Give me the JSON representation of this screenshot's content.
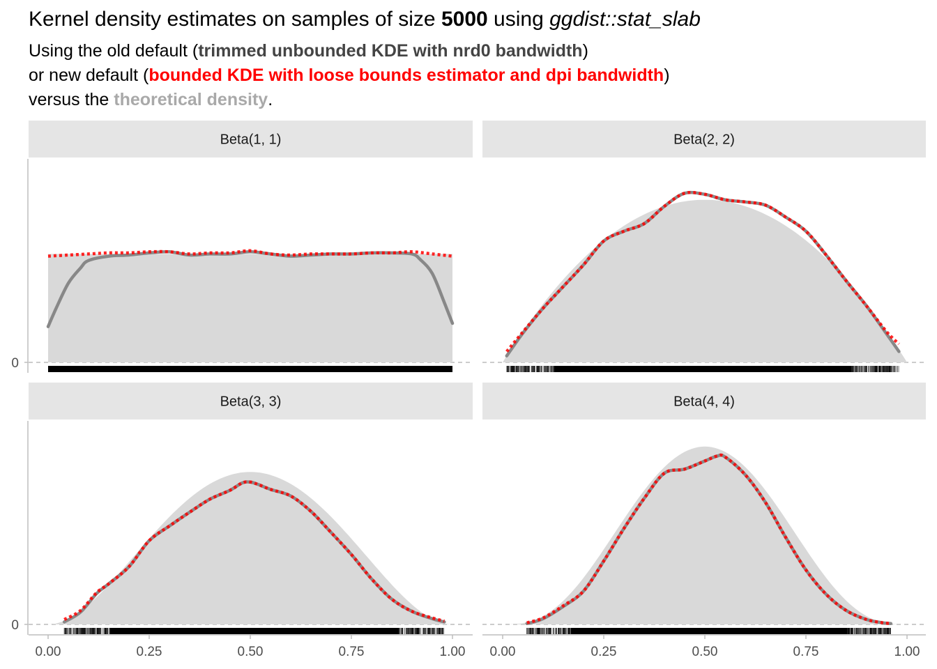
{
  "title": {
    "prefix": "Kernel density estimates on samples of size ",
    "size": "5000",
    "mid": " using ",
    "fn": "ggdist::stat_slab"
  },
  "subtitle": {
    "line1_pre": "Using the old default (",
    "line1_bold": "trimmed unbounded KDE with nrd0 bandwidth",
    "line1_post": ")",
    "line2_pre": "or new default (",
    "line2_bold": "bounded KDE with loose bounds estimator and dpi bandwidth",
    "line2_post": ")",
    "line3_pre": "versus the ",
    "line3_bold": "theoretical density",
    "line3_post": "."
  },
  "colors": {
    "old_default": "#888888",
    "new_default": "#ff0000",
    "theoretical": "#d9d9d9",
    "strip_bg": "#e5e5e5",
    "rug": "#000000"
  },
  "chart_data": {
    "type": "area",
    "xlim": [
      0,
      1
    ],
    "x_ticks": [
      0,
      0.25,
      0.5,
      0.75,
      1
    ],
    "x_tick_labels": [
      "0.00",
      "0.25",
      "0.50",
      "0.75",
      "1.00"
    ],
    "y_tick_labels": [
      "0"
    ],
    "xlabel": "",
    "ylabel": "",
    "sample_size": 5000,
    "legend": "none",
    "panels": [
      {
        "label": "Beta(1, 1)",
        "a": 1,
        "b": 1,
        "ymax": 1.8,
        "sample_range": [
          0.0,
          1.0
        ],
        "new_kde": {
          "x": [
            0.0,
            0.05,
            0.1,
            0.15,
            0.2,
            0.25,
            0.3,
            0.35,
            0.4,
            0.45,
            0.5,
            0.55,
            0.6,
            0.65,
            0.7,
            0.75,
            0.8,
            0.85,
            0.9,
            0.95,
            1.0
          ],
          "y": [
            0.98,
            0.99,
            1.0,
            1.01,
            1.01,
            1.02,
            1.02,
            1.0,
            1.01,
            1.01,
            1.03,
            1.0,
            0.99,
            1.0,
            1.0,
            1.0,
            1.01,
            1.01,
            1.02,
            1.0,
            0.98
          ]
        },
        "old_kde": {
          "x": [
            0.0,
            0.02,
            0.05,
            0.08,
            0.1,
            0.15,
            0.2,
            0.25,
            0.3,
            0.35,
            0.4,
            0.45,
            0.5,
            0.55,
            0.6,
            0.65,
            0.7,
            0.75,
            0.8,
            0.85,
            0.9,
            0.92,
            0.95,
            0.98,
            1.0
          ],
          "y": [
            0.33,
            0.5,
            0.73,
            0.87,
            0.94,
            0.98,
            0.99,
            1.01,
            1.02,
            0.99,
            1.0,
            1.0,
            1.02,
            1.0,
            0.98,
            0.99,
            1.0,
            1.0,
            1.01,
            1.01,
            1.0,
            0.95,
            0.82,
            0.55,
            0.36
          ]
        }
      },
      {
        "label": "Beta(2, 2)",
        "a": 2,
        "b": 2,
        "ymax": 1.8,
        "sample_range": [
          0.01,
          0.98
        ],
        "new_kde": {
          "x": [
            0.01,
            0.05,
            0.1,
            0.15,
            0.2,
            0.25,
            0.3,
            0.35,
            0.4,
            0.45,
            0.5,
            0.55,
            0.6,
            0.65,
            0.7,
            0.75,
            0.8,
            0.85,
            0.9,
            0.95,
            0.98
          ],
          "y": [
            0.1,
            0.28,
            0.5,
            0.7,
            0.9,
            1.12,
            1.21,
            1.28,
            1.44,
            1.56,
            1.55,
            1.5,
            1.48,
            1.45,
            1.34,
            1.21,
            0.99,
            0.75,
            0.52,
            0.28,
            0.17
          ]
        },
        "old_kde": {
          "x": [
            0.01,
            0.05,
            0.1,
            0.15,
            0.2,
            0.25,
            0.3,
            0.35,
            0.4,
            0.45,
            0.5,
            0.55,
            0.6,
            0.65,
            0.7,
            0.75,
            0.8,
            0.85,
            0.9,
            0.95,
            0.98
          ],
          "y": [
            0.06,
            0.27,
            0.5,
            0.7,
            0.9,
            1.12,
            1.21,
            1.28,
            1.44,
            1.56,
            1.55,
            1.5,
            1.48,
            1.45,
            1.34,
            1.21,
            0.99,
            0.75,
            0.52,
            0.26,
            0.1
          ]
        }
      },
      {
        "label": "Beta(3, 3)",
        "a": 3,
        "b": 3,
        "ymax": 2.4,
        "sample_range": [
          0.04,
          0.98
        ],
        "new_kde": {
          "x": [
            0.04,
            0.08,
            0.12,
            0.15,
            0.2,
            0.25,
            0.3,
            0.35,
            0.4,
            0.45,
            0.48,
            0.5,
            0.52,
            0.55,
            0.6,
            0.65,
            0.7,
            0.75,
            0.8,
            0.85,
            0.9,
            0.95,
            0.98
          ],
          "y": [
            0.06,
            0.17,
            0.39,
            0.5,
            0.71,
            1.03,
            1.21,
            1.38,
            1.54,
            1.65,
            1.74,
            1.75,
            1.72,
            1.66,
            1.58,
            1.39,
            1.13,
            0.86,
            0.56,
            0.31,
            0.16,
            0.08,
            0.04
          ]
        },
        "old_kde": {
          "x": [
            0.04,
            0.08,
            0.12,
            0.15,
            0.2,
            0.25,
            0.3,
            0.35,
            0.4,
            0.45,
            0.48,
            0.5,
            0.52,
            0.55,
            0.6,
            0.65,
            0.7,
            0.75,
            0.8,
            0.85,
            0.9,
            0.95,
            0.98
          ],
          "y": [
            0.03,
            0.15,
            0.38,
            0.5,
            0.71,
            1.03,
            1.21,
            1.38,
            1.54,
            1.65,
            1.74,
            1.75,
            1.72,
            1.66,
            1.58,
            1.39,
            1.13,
            0.86,
            0.56,
            0.31,
            0.16,
            0.07,
            0.03
          ]
        }
      },
      {
        "label": "Beta(4, 4)",
        "a": 4,
        "b": 4,
        "ymax": 2.4,
        "sample_range": [
          0.06,
          0.96
        ],
        "new_kde": {
          "x": [
            0.06,
            0.1,
            0.15,
            0.2,
            0.25,
            0.3,
            0.35,
            0.4,
            0.45,
            0.5,
            0.53,
            0.55,
            0.6,
            0.65,
            0.7,
            0.75,
            0.8,
            0.85,
            0.9,
            0.94,
            0.96
          ],
          "y": [
            0.02,
            0.08,
            0.23,
            0.41,
            0.78,
            1.18,
            1.55,
            1.86,
            1.91,
            2.01,
            2.07,
            2.06,
            1.84,
            1.5,
            1.07,
            0.67,
            0.37,
            0.17,
            0.06,
            0.02,
            0.01
          ]
        },
        "old_kde": {
          "x": [
            0.06,
            0.1,
            0.15,
            0.2,
            0.25,
            0.3,
            0.35,
            0.4,
            0.45,
            0.5,
            0.53,
            0.55,
            0.6,
            0.65,
            0.7,
            0.75,
            0.8,
            0.85,
            0.9,
            0.94,
            0.96
          ],
          "y": [
            0.01,
            0.07,
            0.22,
            0.41,
            0.78,
            1.18,
            1.55,
            1.86,
            1.91,
            2.01,
            2.07,
            2.06,
            1.84,
            1.5,
            1.07,
            0.67,
            0.37,
            0.17,
            0.06,
            0.02,
            0.01
          ]
        }
      }
    ]
  }
}
